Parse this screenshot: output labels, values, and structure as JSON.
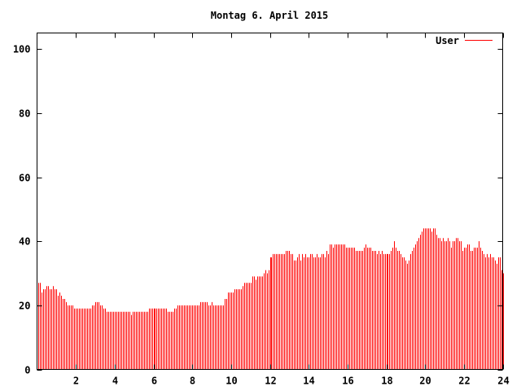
{
  "chart_data": {
    "type": "bar",
    "style": "impulses",
    "title": "Montag 6. April 2015",
    "xlabel": "",
    "ylabel": "",
    "xlim": [
      0,
      24
    ],
    "ylim": [
      0,
      105
    ],
    "x_ticks": [
      "2",
      "4",
      "6",
      "8",
      "10",
      "12",
      "14",
      "16",
      "18",
      "20",
      "22",
      "24"
    ],
    "y_ticks": [
      "0",
      "20",
      "40",
      "60",
      "80",
      "100"
    ],
    "grid": false,
    "legend_position": "top-right",
    "series": [
      {
        "name": "User",
        "color": "#ff0000",
        "values": [
          27,
          27,
          24,
          25,
          25,
          26,
          26,
          25,
          25,
          26,
          25,
          25,
          23,
          24,
          23,
          22,
          22,
          21,
          20,
          20,
          20,
          20,
          19,
          19,
          19,
          19,
          19,
          19,
          19,
          19,
          19,
          19,
          19,
          20,
          20,
          21,
          21,
          21,
          20,
          20,
          19,
          19,
          18,
          18,
          18,
          18,
          18,
          18,
          18,
          18,
          18,
          18,
          18,
          18,
          18,
          18,
          18,
          17,
          18,
          18,
          18,
          18,
          18,
          18,
          18,
          18,
          18,
          18,
          19,
          19,
          19,
          19,
          19,
          19,
          19,
          19,
          19,
          19,
          19,
          19,
          18,
          18,
          18,
          18,
          19,
          19,
          20,
          20,
          20,
          20,
          20,
          20,
          20,
          20,
          20,
          20,
          20,
          20,
          20,
          20,
          21,
          21,
          21,
          21,
          21,
          20,
          20,
          21,
          20,
          20,
          20,
          20,
          20,
          20,
          20,
          22,
          22,
          24,
          24,
          24,
          24,
          25,
          25,
          25,
          25,
          25,
          26,
          27,
          27,
          27,
          27,
          27,
          29,
          29,
          28,
          29,
          29,
          29,
          29,
          30,
          31,
          30,
          31,
          35,
          35,
          36,
          36,
          36,
          36,
          36,
          36,
          36,
          36,
          37,
          37,
          37,
          36,
          36,
          34,
          34,
          35,
          36,
          34,
          36,
          35,
          36,
          35,
          35,
          36,
          36,
          35,
          35,
          36,
          35,
          35,
          36,
          36,
          35,
          37,
          36,
          39,
          39,
          38,
          39,
          39,
          39,
          39,
          39,
          39,
          39,
          38,
          38,
          38,
          38,
          38,
          38,
          37,
          37,
          37,
          37,
          37,
          38,
          39,
          38,
          38,
          38,
          37,
          37,
          37,
          36,
          37,
          36,
          37,
          36,
          36,
          36,
          36,
          36,
          37,
          38,
          40,
          38,
          37,
          37,
          36,
          35,
          35,
          34,
          33,
          34,
          36,
          37,
          38,
          39,
          40,
          41,
          42,
          43,
          44,
          44,
          44,
          44,
          44,
          43,
          44,
          44,
          42,
          41,
          41,
          40,
          41,
          40,
          40,
          41,
          40,
          38,
          40,
          40,
          41,
          41,
          40,
          40,
          37,
          38,
          38,
          39,
          39,
          37,
          37,
          38,
          38,
          38,
          40,
          38,
          37,
          36,
          35,
          36,
          35,
          36,
          35,
          35,
          34,
          33,
          35,
          35,
          31,
          30
        ]
      }
    ]
  }
}
